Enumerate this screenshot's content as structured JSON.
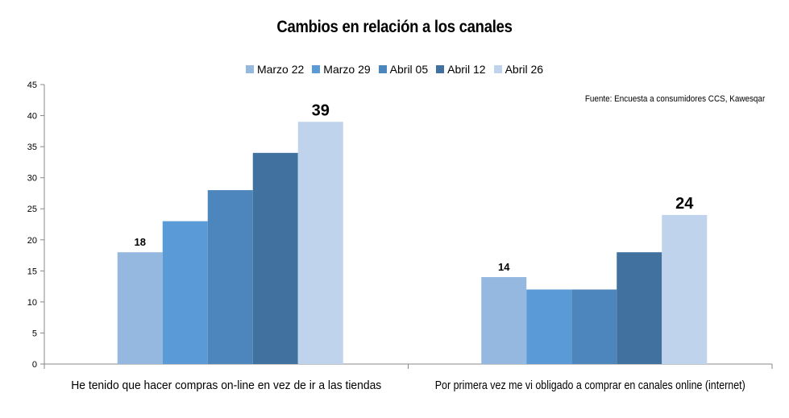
{
  "chart_data": {
    "type": "bar",
    "title": "Cambios en relación a los canales",
    "annotation": "Fuente: Encuesta a consumidores CCS, Kawesqar",
    "categories": [
      "He tenido que hacer compras on-line en vez de ir a las tiendas",
      "Por primera vez me vi obligado a comprar en canales online (internet)"
    ],
    "series": [
      {
        "name": "Marzo 22",
        "color": "#95b8e0",
        "values": [
          18,
          14
        ]
      },
      {
        "name": "Marzo 29",
        "color": "#5a9ad6",
        "values": [
          23,
          12
        ]
      },
      {
        "name": "Abril 05",
        "color": "#4d86bd",
        "values": [
          28,
          12
        ]
      },
      {
        "name": "Abril 12",
        "color": "#41729f",
        "values": [
          34,
          18
        ]
      },
      {
        "name": "Abril 26",
        "color": "#bfd3ec",
        "values": [
          39,
          24
        ]
      }
    ],
    "data_labels": [
      {
        "category_index": 0,
        "series_index": 0,
        "text": "18"
      },
      {
        "category_index": 0,
        "series_index": 4,
        "text": "39"
      },
      {
        "category_index": 1,
        "series_index": 0,
        "text": "14"
      },
      {
        "category_index": 1,
        "series_index": 4,
        "text": "24"
      }
    ],
    "ylim": [
      0,
      45
    ],
    "yticks": [
      0,
      5,
      10,
      15,
      20,
      25,
      30,
      35,
      40,
      45
    ],
    "legend_position": "top-center",
    "grid": false
  }
}
